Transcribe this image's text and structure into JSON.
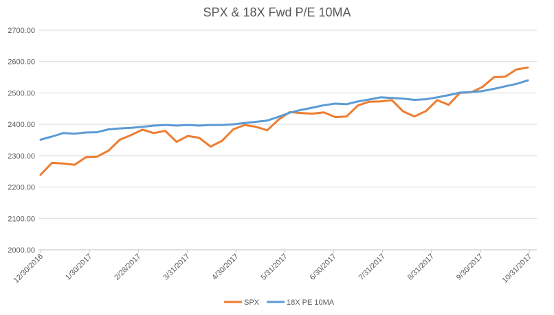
{
  "chart_data": {
    "type": "line",
    "title": "SPX & 18X Fwd P/E 10MA",
    "xlabel": "",
    "ylabel": "",
    "ylim": [
      2000,
      2700
    ],
    "y_ticks": [
      "2000.00",
      "2100.00",
      "2200.00",
      "2300.00",
      "2400.00",
      "2500.00",
      "2600.00",
      "2700.00"
    ],
    "y_tick_values": [
      2000,
      2100,
      2200,
      2300,
      2400,
      2500,
      2600,
      2700
    ],
    "x_tick_labels": [
      "12/30/2016",
      "1/30/2017",
      "2/28/2017",
      "3/31/2017",
      "4/30/2017",
      "5/31/2017",
      "6/30/2017",
      "7/31/2017",
      "8/31/2017",
      "9/30/2017",
      "10/31/2017"
    ],
    "grid": "horizontal",
    "legend_position": "bottom",
    "series": [
      {
        "name": "SPX",
        "color": "#ED7D31",
        "values": [
          2239,
          2277,
          2275,
          2271,
          2295,
          2297,
          2316,
          2351,
          2366,
          2383,
          2372,
          2379,
          2344,
          2363,
          2357,
          2329,
          2347,
          2384,
          2398,
          2392,
          2381,
          2415,
          2439,
          2436,
          2434,
          2438,
          2423,
          2425,
          2460,
          2472,
          2473,
          2477,
          2441,
          2425,
          2442,
          2477,
          2462,
          2500,
          2502,
          2519,
          2550,
          2552,
          2575,
          2581
        ]
      },
      {
        "name": "18X PE 10MA",
        "color": "#5B9BD5",
        "values": [
          2351,
          2361,
          2372,
          2370,
          2374,
          2375,
          2384,
          2387,
          2389,
          2392,
          2396,
          2398,
          2396,
          2398,
          2396,
          2398,
          2398,
          2400,
          2404,
          2408,
          2412,
          2424,
          2437,
          2446,
          2453,
          2461,
          2466,
          2464,
          2473,
          2479,
          2486,
          2484,
          2482,
          2478,
          2480,
          2486,
          2493,
          2501,
          2503,
          2506,
          2513,
          2521,
          2529,
          2540
        ]
      }
    ]
  }
}
